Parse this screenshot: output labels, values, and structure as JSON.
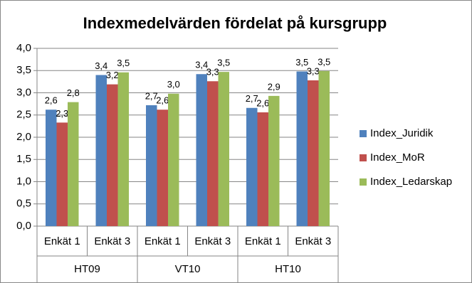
{
  "chart_data": {
    "type": "bar",
    "title": "Indexmedelvärden fördelat på kursgrupp",
    "categories": [
      "Enkät 1",
      "Enkät 3",
      "Enkät 1",
      "Enkät 3",
      "Enkät 1",
      "Enkät 3"
    ],
    "groups": [
      "HT09",
      "VT10",
      "HT10"
    ],
    "series": [
      {
        "name": "Index_Juridik",
        "color": "#4f81bd",
        "values": [
          2.62,
          3.4,
          2.72,
          3.42,
          2.66,
          3.48
        ],
        "value_labels": [
          "2,6",
          "3,4",
          "2,7",
          "3,4",
          "2,7",
          "3,5"
        ]
      },
      {
        "name": "Index_MoR",
        "color": "#c0504d",
        "values": [
          2.33,
          3.19,
          2.62,
          3.26,
          2.56,
          3.28
        ],
        "value_labels": [
          "2,3",
          "3,2",
          "2,6",
          "3,3",
          "2,6",
          "3,3"
        ]
      },
      {
        "name": "Index_Ledarskap",
        "color": "#9bbb59",
        "values": [
          2.79,
          3.46,
          2.98,
          3.47,
          2.93,
          3.49
        ],
        "value_labels": [
          "2,8",
          "3,5",
          "3,0",
          "3,5",
          "2,9",
          "3,5"
        ]
      }
    ],
    "ylim": [
      0,
      4
    ],
    "yticks": [
      {
        "value": 0,
        "label": "0,0"
      },
      {
        "value": 0.5,
        "label": "0,5"
      },
      {
        "value": 1,
        "label": "1,0"
      },
      {
        "value": 1.5,
        "label": "1,5"
      },
      {
        "value": 2,
        "label": "2,0"
      },
      {
        "value": 2.5,
        "label": "2,5"
      },
      {
        "value": 3,
        "label": "3,0"
      },
      {
        "value": 3.5,
        "label": "3,5"
      },
      {
        "value": 4,
        "label": "4,0"
      }
    ],
    "grid": true,
    "legend": "right"
  }
}
